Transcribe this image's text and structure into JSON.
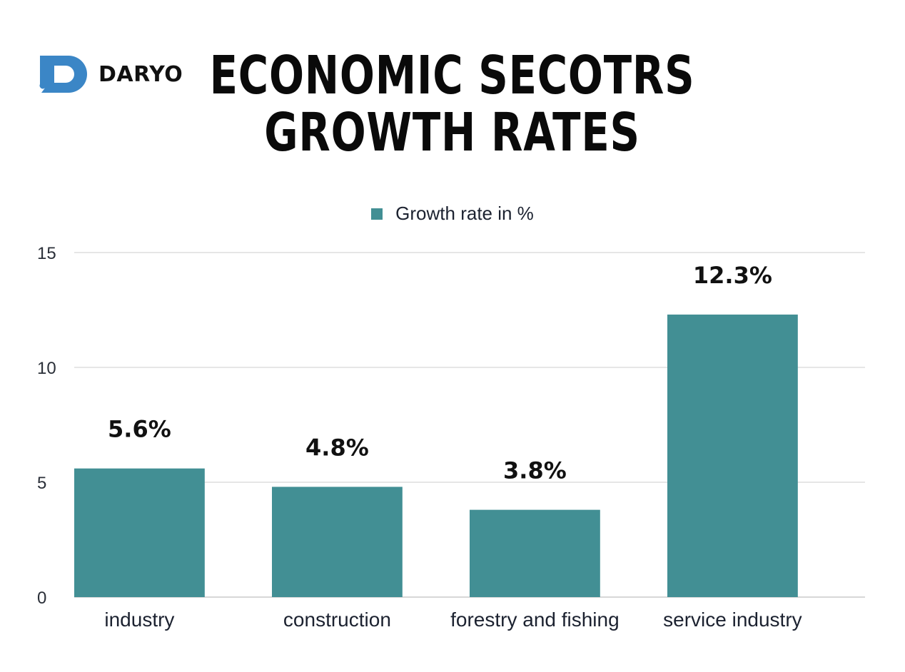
{
  "logo": {
    "text": "DARYO",
    "color": "#3b86c6"
  },
  "title": {
    "line1": "ECONOMIC SECOTRS",
    "line2": "GROWTH RATES"
  },
  "colors": {
    "bar": "#428f94",
    "grid": "#d8d8d8",
    "axis": "#bfbfbf"
  },
  "chart_data": {
    "type": "bar",
    "categories": [
      "industry",
      "construction",
      "forestry and fishing",
      "service industry"
    ],
    "series": [
      {
        "name": "Growth rate in %",
        "values": [
          5.6,
          4.8,
          3.8,
          12.3
        ],
        "labels": [
          "5.6%",
          "4.8%",
          "3.8%",
          "12.3%"
        ]
      }
    ],
    "ylim": [
      0,
      15
    ],
    "yticks": [
      0,
      5,
      10,
      15
    ],
    "grid": true,
    "legend": "top-center"
  }
}
